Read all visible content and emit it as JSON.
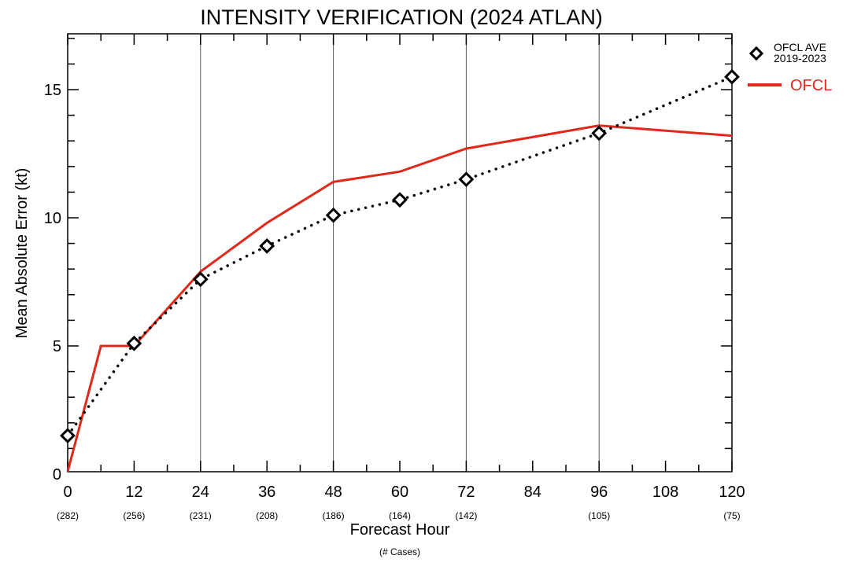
{
  "chart_data": {
    "type": "line",
    "title": "INTENSITY VERIFICATION (2024 ATLAN)",
    "xlabel": "Forecast Hour",
    "xlabel_sub": "(# Cases)",
    "ylabel": "Mean Absolute Error (kt)",
    "xlim": [
      0,
      120
    ],
    "ylim": [
      0,
      17
    ],
    "x_ticks": [
      "0",
      "12",
      "24",
      "36",
      "48",
      "60",
      "72",
      "84",
      "96",
      "108",
      "120"
    ],
    "x_tick_values": [
      0,
      12,
      24,
      36,
      48,
      60,
      72,
      84,
      96,
      108,
      120
    ],
    "y_ticks": [
      "0",
      "5",
      "10",
      "15"
    ],
    "y_tick_values": [
      0,
      5,
      10,
      15
    ],
    "vertical_gridlines": [
      24,
      48,
      72,
      96
    ],
    "cases": [
      {
        "x": 0,
        "label": "(282)"
      },
      {
        "x": 12,
        "label": "(256)"
      },
      {
        "x": 24,
        "label": "(231)"
      },
      {
        "x": 36,
        "label": "(208)"
      },
      {
        "x": 48,
        "label": "(186)"
      },
      {
        "x": 60,
        "label": "(164)"
      },
      {
        "x": 72,
        "label": "(142)"
      },
      {
        "x": 96,
        "label": "(105)"
      },
      {
        "x": 120,
        "label": "(75)"
      }
    ],
    "legend_position": "right",
    "series": [
      {
        "name": "OFCL AVE",
        "name2": "2019-2023",
        "style": "dotted-diamond",
        "color": "#000000",
        "x": [
          0,
          12,
          24,
          36,
          48,
          60,
          72,
          96,
          120
        ],
        "y": [
          1.5,
          5.1,
          7.6,
          8.9,
          10.1,
          10.7,
          11.5,
          13.3,
          15.5
        ]
      },
      {
        "name": "OFCL",
        "style": "solid",
        "color": "#e0291b",
        "x": [
          0,
          6,
          12,
          24,
          36,
          48,
          60,
          72,
          96,
          120
        ],
        "y": [
          0.1,
          5.0,
          5.0,
          7.9,
          9.8,
          11.4,
          11.8,
          12.7,
          13.6,
          13.2
        ]
      }
    ]
  }
}
